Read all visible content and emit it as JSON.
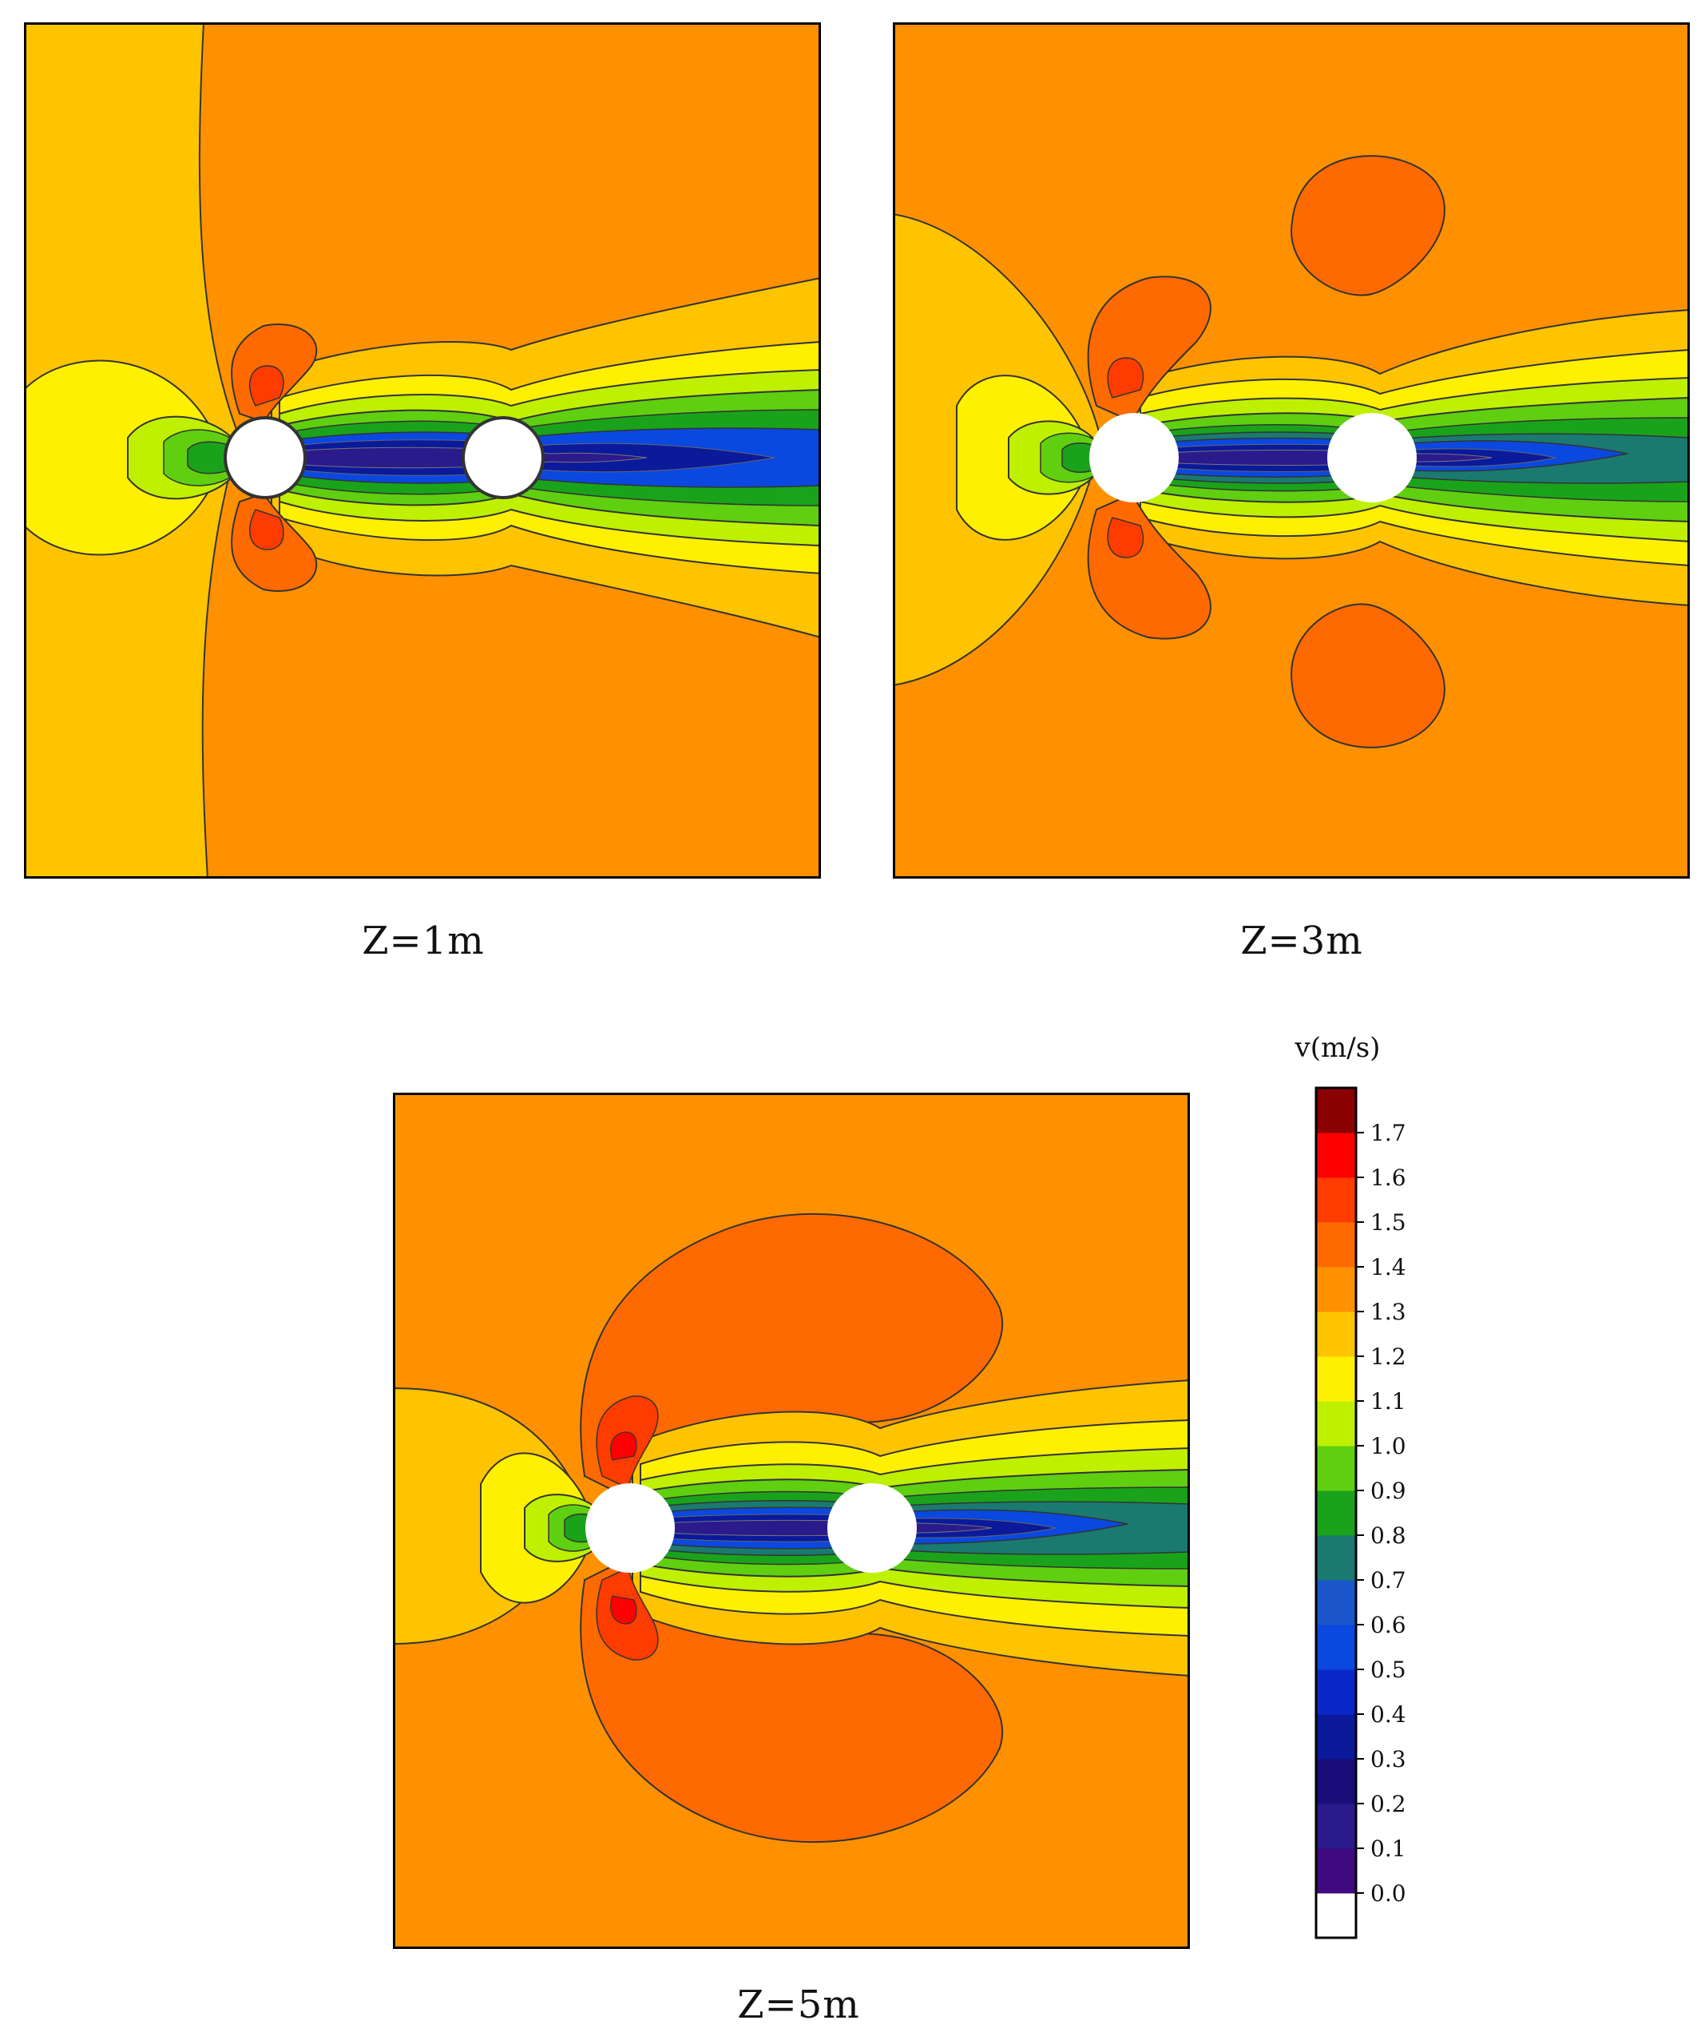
{
  "figure": {
    "panels": [
      {
        "caption": "Z=1m"
      },
      {
        "caption": "Z=3m"
      },
      {
        "caption": "Z=5m"
      }
    ],
    "colorbar": {
      "title": "v(m/s)",
      "ticks": [
        "0.0",
        "0.1",
        "0.2",
        "0.3",
        "0.4",
        "0.5",
        "0.6",
        "0.7",
        "0.8",
        "0.9",
        "1.0",
        "1.1",
        "1.2",
        "1.3",
        "1.4",
        "1.5",
        "1.6",
        "1.7"
      ]
    }
  },
  "chart_data": {
    "type": "heatmap",
    "description_kind": "velocity contour maps around two cylinders at three depths",
    "levels": [
      0.0,
      0.1,
      0.2,
      0.3,
      0.4,
      0.5,
      0.6,
      0.7,
      0.8,
      0.9,
      1.0,
      1.1,
      1.2,
      1.3,
      1.4,
      1.5,
      1.6,
      1.7
    ],
    "level_colors": [
      "#ffffff",
      "#3f0a7f",
      "#2a1a8c",
      "#1a0d7a",
      "#0a1a9a",
      "#0a28c8",
      "#0a48e0",
      "#1a55cc",
      "#1a7a70",
      "#1aa31a",
      "#5fcf10",
      "#bff000",
      "#fff000",
      "#ffc400",
      "#ff9100",
      "#ff6a00",
      "#ff3c00",
      "#ff0000",
      "#8b0000"
    ],
    "colorbar_range": [
      0.0,
      1.8
    ],
    "series": [
      {
        "name": "Z=1m",
        "background_level": 1.3
      },
      {
        "name": "Z=3m",
        "background_level": 1.3
      },
      {
        "name": "Z=5m",
        "background_level": 1.3
      }
    ]
  }
}
